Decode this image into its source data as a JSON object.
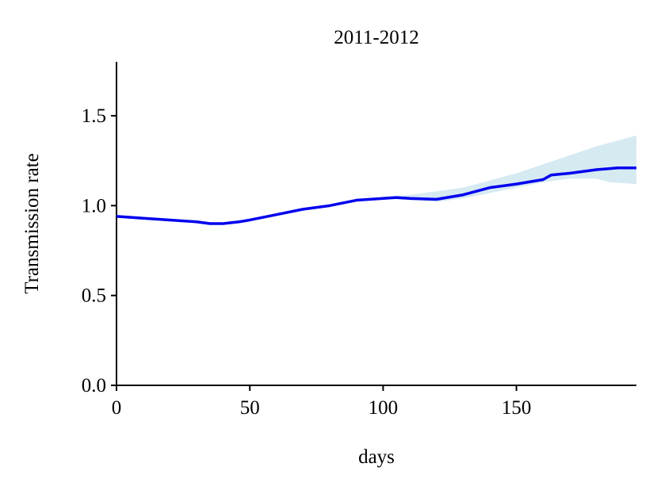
{
  "chart_data": {
    "type": "line",
    "title": "2011-2012",
    "xlabel": "days",
    "ylabel": "Transmission rate",
    "x": [
      0,
      10,
      20,
      30,
      35,
      40,
      46,
      50,
      60,
      70,
      80,
      90,
      100,
      105,
      110,
      120,
      130,
      140,
      150,
      160,
      163,
      170,
      180,
      188,
      195
    ],
    "series": [
      {
        "color": "#0000ee",
        "values": [
          0.94,
          0.93,
          0.92,
          0.91,
          0.9,
          0.9,
          0.91,
          0.92,
          0.95,
          0.98,
          1.0,
          1.03,
          1.04,
          1.045,
          1.04,
          1.035,
          1.06,
          1.1,
          1.12,
          1.145,
          1.17,
          1.18,
          1.2,
          1.21,
          1.21
        ]
      }
    ],
    "band": {
      "color": "#d6eaf2",
      "x": [
        100,
        110,
        120,
        130,
        140,
        150,
        160,
        170,
        180,
        185,
        195
      ],
      "lower": [
        1.04,
        1.03,
        1.02,
        1.04,
        1.07,
        1.1,
        1.13,
        1.15,
        1.15,
        1.13,
        1.12
      ],
      "upper": [
        1.05,
        1.06,
        1.08,
        1.1,
        1.14,
        1.18,
        1.23,
        1.28,
        1.33,
        1.35,
        1.39
      ]
    },
    "xlim": [
      0,
      195
    ],
    "ylim": [
      0,
      1.8
    ],
    "xticks": [
      0,
      50,
      100,
      150
    ],
    "yticks": [
      {
        "value": 0,
        "label": "0.0"
      },
      0.5,
      {
        "value": 1,
        "label": "1.0"
      },
      1.5
    ]
  }
}
